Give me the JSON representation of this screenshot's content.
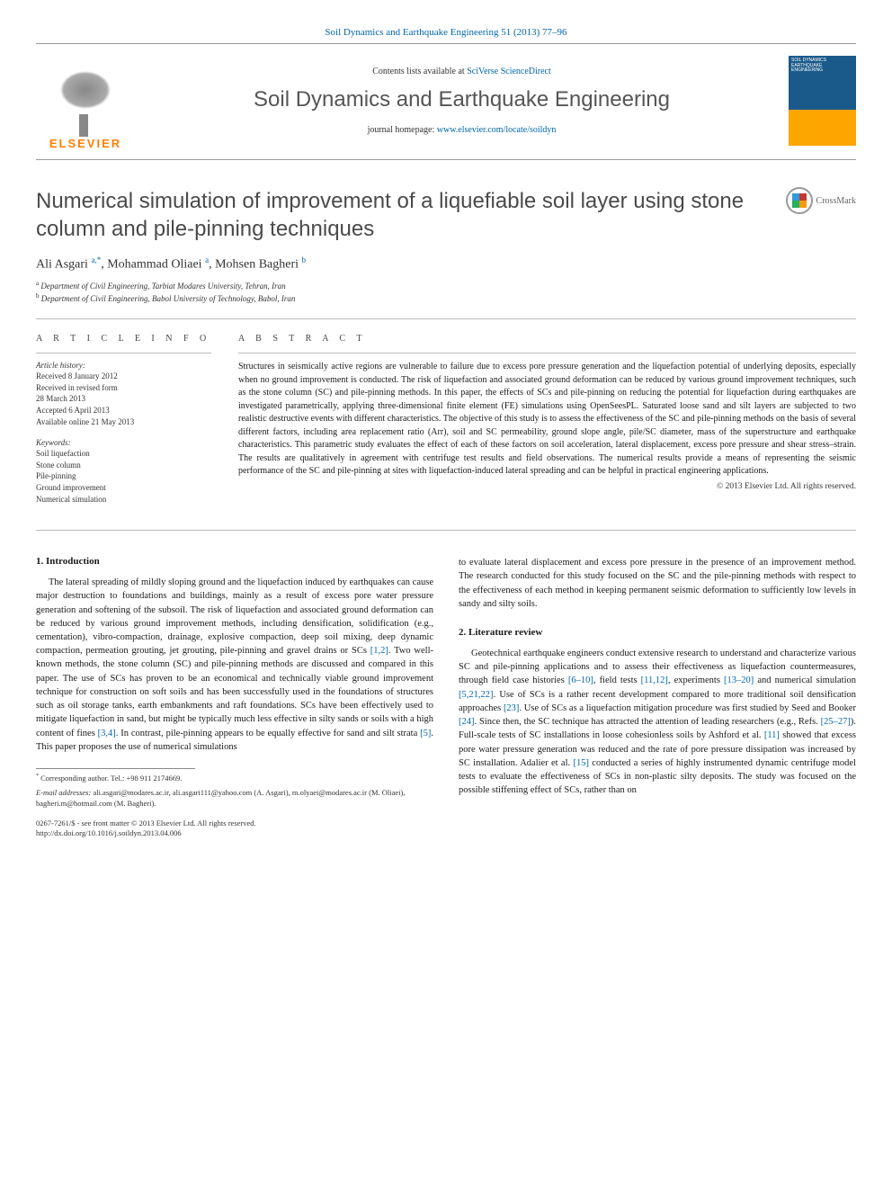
{
  "header": {
    "journal_ref": "Soil Dynamics and Earthquake Engineering 51 (2013) 77–96",
    "contents_prefix": "Contents lists available at ",
    "contents_link": "SciVerse ScienceDirect",
    "journal_name": "Soil Dynamics and Earthquake Engineering",
    "homepage_prefix": "journal homepage: ",
    "homepage_link": "www.elsevier.com/locate/soildyn",
    "publisher": "ELSEVIER",
    "cover_text": "SOIL DYNAMICS EARTHQUAKE ENGINEERING"
  },
  "colors": {
    "link": "#0066aa",
    "publisher": "#ff7f00",
    "journal_title": "#555555",
    "body_text": "#1a1a1a",
    "divider": "#bbbbbb",
    "cover_top": "#1a5a8a",
    "cover_bottom": "#ffa500"
  },
  "typography": {
    "title_fontsize": 24,
    "body_fontsize": 10.5,
    "abstract_fontsize": 10,
    "info_fontsize": 9,
    "footnote_fontsize": 8.5
  },
  "title": "Numerical simulation of improvement of a liquefiable soil layer using stone column and pile-pinning techniques",
  "crossmark_label": "CrossMark",
  "authors_html": "Ali Asgari <span class='sup'>a,*</span>, Mohammad Oliaei <span class='sup'>a</span>, Mohsen Bagheri <span class='sup'>b</span>",
  "affiliations": [
    {
      "sup": "a",
      "text": " Department of Civil Engineering, Tarbiat Modares University, Tehran, Iran"
    },
    {
      "sup": "b",
      "text": " Department of Civil Engineering, Babol University of Technology, Babol, Iran"
    }
  ],
  "article_info": {
    "heading": "A R T I C L E   I N F O",
    "history_label": "Article history:",
    "history": [
      "Received 8 January 2012",
      "Received in revised form",
      "28 March 2013",
      "Accepted 6 April 2013",
      "Available online 21 May 2013"
    ],
    "keywords_label": "Keywords:",
    "keywords": [
      "Soil liquefaction",
      "Stone column",
      "Pile-pinning",
      "Ground improvement",
      "Numerical simulation"
    ]
  },
  "abstract": {
    "heading": "A B S T R A C T",
    "text": "Structures in seismically active regions are vulnerable to failure due to excess pore pressure generation and the liquefaction potential of underlying deposits, especially when no ground improvement is conducted. The risk of liquefaction and associated ground deformation can be reduced by various ground improvement techniques, such as the stone column (SC) and pile-pinning methods. In this paper, the effects of SCs and pile-pinning on reducing the potential for liquefaction during earthquakes are investigated parametrically, applying three-dimensional finite element (FE) simulations using OpenSeesPL. Saturated loose sand and silt layers are subjected to two realistic destructive events with different characteristics. The objective of this study is to assess the effectiveness of the SC and pile-pinning methods on the basis of several different factors, including area replacement ratio (Arr), soil and SC permeability, ground slope angle, pile/SC diameter, mass of the superstructure and earthquake characteristics. This parametric study evaluates the effect of each of these factors on soil acceleration, lateral displacement, excess pore pressure and shear stress–strain. The results are qualitatively in agreement with centrifuge test results and field observations. The numerical results provide a means of representing the seismic performance of the SC and pile-pinning at sites with liquefaction-induced lateral spreading and can be helpful in practical engineering applications.",
    "copyright": "© 2013 Elsevier Ltd. All rights reserved."
  },
  "sections": {
    "intro_heading": "1.  Introduction",
    "intro_text_html": "<span class='indent'>The lateral spreading of mildly sloping ground and the liquefaction induced by earthquakes can cause major destruction to foundations and buildings, mainly as a result of excess pore water pressure generation and softening of the subsoil. The risk of liquefaction and associated ground deformation can be reduced by various ground improvement methods, including densification, solidification (e.g., cementation), vibro-compaction, drainage, explosive compaction, deep soil mixing, deep dynamic compaction, permeation grouting, jet grouting, pile-pinning and gravel drains or SCs <span class='ref'>[1,2]</span>. Two well-known methods, the stone column (SC) and pile-pinning methods are discussed and compared in this paper. The use of SCs has proven to be an economical and technically viable ground improvement technique for construction on soft soils and has been successfully used in the foundations of structures such as oil storage tanks, earth embankments and raft foundations. SCs have been effectively used to mitigate liquefaction in sand, but might be typically much less effective in silty sands or soils with a high content of fines <span class='ref'>[3,4]</span>. In contrast, pile-pinning appears to be equally effective for sand and silt strata <span class='ref'>[5]</span>. This paper proposes the use of numerical simulations</span>",
    "intro_continuation": "to evaluate lateral displacement and excess pore pressure in the presence of an improvement method. The research conducted for this study focused on the SC and the pile-pinning methods with respect to the effectiveness of each method in keeping permanent seismic deformation to sufficiently low levels in sandy and silty soils.",
    "lit_heading": "2.  Literature review",
    "lit_text_html": "<span class='indent'>Geotechnical earthquake engineers conduct extensive research to understand and characterize various SC and pile-pinning applications and to assess their effectiveness as liquefaction countermeasures, through field case histories <span class='ref'>[6–10]</span>, field tests <span class='ref'>[11,12]</span>, experiments <span class='ref'>[13–20]</span> and numerical simulation <span class='ref'>[5,21,22]</span>. Use of SCs is a rather recent development compared to more traditional soil densification approaches <span class='ref'>[23]</span>. Use of SCs as a liquefaction mitigation procedure was first studied by Seed and Booker <span class='ref'>[24]</span>. Since then, the SC technique has attracted the attention of leading researchers (e.g., Refs. <span class='ref'>[25–27]</span>). Full-scale tests of SC installations in loose cohesionless soils by Ashford et al. <span class='ref'>[11]</span> showed that excess pore water pressure generation was reduced and the rate of pore pressure dissipation was increased by SC installation. Adalier et al. <span class='ref'>[15]</span> conducted a series of highly instrumented dynamic centrifuge model tests to evaluate the effectiveness of SCs in non-plastic silty deposits. The study was focused on the possible stiffening effect of SCs, rather than on</span>"
  },
  "footnotes": {
    "corresponding": "Corresponding author. Tel.: +98 911 2174669.",
    "emails_label": "E-mail addresses:",
    "emails": " ali.asgari@modares.ac.ir, ali.asgari111@yahoo.com (A. Asgari), m.olyaei@modares.ac.ir (M. Oliaei), bagheri.m@hotmail.com (M. Bagheri)."
  },
  "footer": {
    "issn": "0267-7261/$ - see front matter © 2013 Elsevier Ltd. All rights reserved.",
    "doi": "http://dx.doi.org/10.1016/j.soildyn.2013.04.006"
  }
}
